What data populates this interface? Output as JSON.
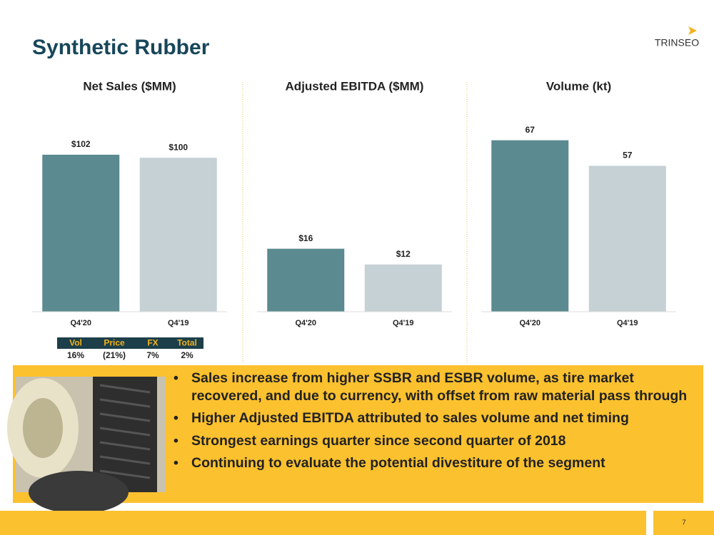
{
  "title": "Synthetic Rubber",
  "logo": "TRINSEO",
  "chart_data": [
    {
      "type": "bar",
      "title": "Net Sales ($MM)",
      "categories": [
        "Q4'20",
        "Q4'19"
      ],
      "values": [
        102,
        100
      ],
      "value_labels": [
        "$102",
        "$100"
      ],
      "colors": [
        "#5b8a90",
        "#c5d1d4"
      ],
      "ylim": [
        0,
        133
      ]
    },
    {
      "type": "bar",
      "title": "Adjusted EBITDA ($MM)",
      "categories": [
        "Q4'20",
        "Q4'19"
      ],
      "values": [
        16,
        12
      ],
      "value_labels": [
        "$16",
        "$12"
      ],
      "colors": [
        "#5b8a90",
        "#c5d1d4"
      ],
      "ylim": [
        0,
        52
      ]
    },
    {
      "type": "bar",
      "title": "Volume (kt)",
      "categories": [
        "Q4'20",
        "Q4'19"
      ],
      "values": [
        67,
        57
      ],
      "colors": [
        "#5b8a90",
        "#c5d1d4"
      ],
      "ylim": [
        0,
        80
      ]
    }
  ],
  "bridge_table": {
    "header": [
      "Vol",
      "Price",
      "FX",
      "Total"
    ],
    "row": [
      "16%",
      "(21%)",
      "7%",
      "2%"
    ]
  },
  "bullets": [
    "Sales increase from higher SSBR and ESBR volume, as tire market recovered, and due to currency, with offset from raw material pass through",
    "Higher Adjusted EBITDA attributed to sales volume and net timing",
    "Strongest earnings quarter since second quarter of 2018",
    "Continuing to evaluate the potential divestiture of the segment"
  ],
  "page_number": "7"
}
